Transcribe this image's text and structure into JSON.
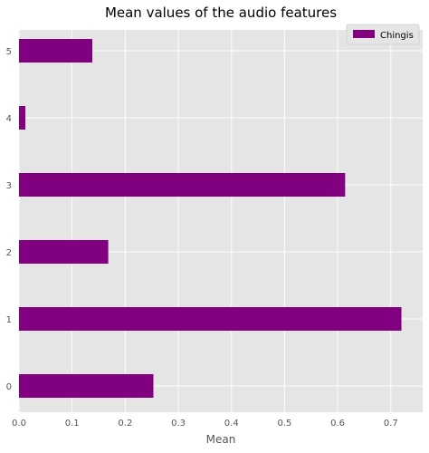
{
  "chart_data": {
    "type": "bar",
    "orientation": "horizontal",
    "title": "Mean values of the audio features",
    "xlabel": "Mean",
    "ylabel": "",
    "categories": [
      "0",
      "1",
      "2",
      "3",
      "4",
      "5"
    ],
    "series": [
      {
        "name": "Chingis",
        "values": [
          0.253,
          0.72,
          0.168,
          0.614,
          0.012,
          0.138
        ]
      }
    ],
    "xlim": [
      0.0,
      0.76
    ],
    "xticks": [
      "0.0",
      "0.1",
      "0.2",
      "0.3",
      "0.4",
      "0.5",
      "0.6",
      "0.7"
    ],
    "grid": true,
    "legend_position": "top-right",
    "colors": {
      "bar": "#800080",
      "plot_background": "#e5e5e5",
      "grid": "#ffffff"
    }
  }
}
